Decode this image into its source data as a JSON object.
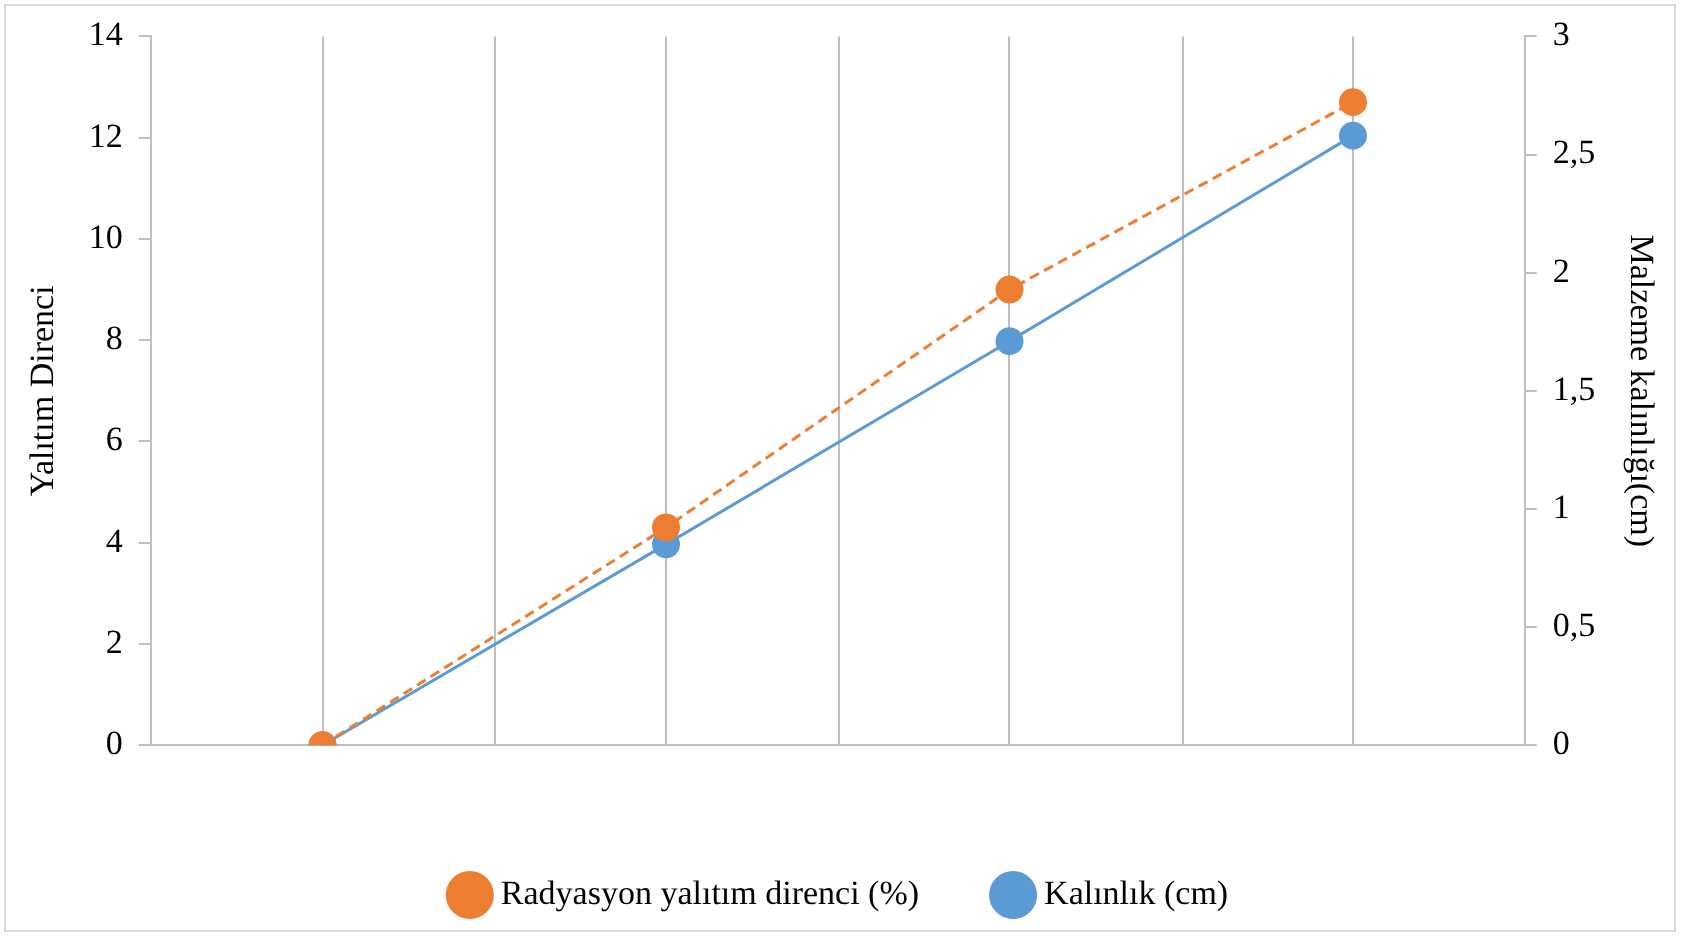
{
  "chart_data": {
    "type": "line",
    "ylabel": "Yalıtım Direnci",
    "y2label": "Malzeme kalınlığı(cm)",
    "categories": [
      null,
      null,
      null,
      null
    ],
    "series": [
      {
        "name": "Radyasyon yalıtım direnci (%)",
        "color": "#ed7d31",
        "values": [
          0,
          4.3,
          9.0,
          12.7
        ],
        "line_style": "dashed"
      },
      {
        "name": "Kalınlık (cm)",
        "color": "#5b9bd5",
        "values": [
          0,
          0.85,
          1.71,
          2.58
        ],
        "axis": "y2",
        "line_style": "solid"
      }
    ],
    "ylim": [
      0,
      14
    ],
    "yticks": [
      0,
      2,
      4,
      6,
      8,
      10,
      12,
      14
    ],
    "y2lim": [
      0,
      3
    ],
    "y2ticks": [
      0,
      {
        "value": 0.5,
        "label": "0,5"
      },
      1,
      {
        "value": 1.5,
        "label": "1,5"
      },
      2,
      {
        "value": 2.5,
        "label": "2,5"
      },
      3
    ],
    "grid": "x",
    "legend": "bottom",
    "marker": "circle"
  }
}
